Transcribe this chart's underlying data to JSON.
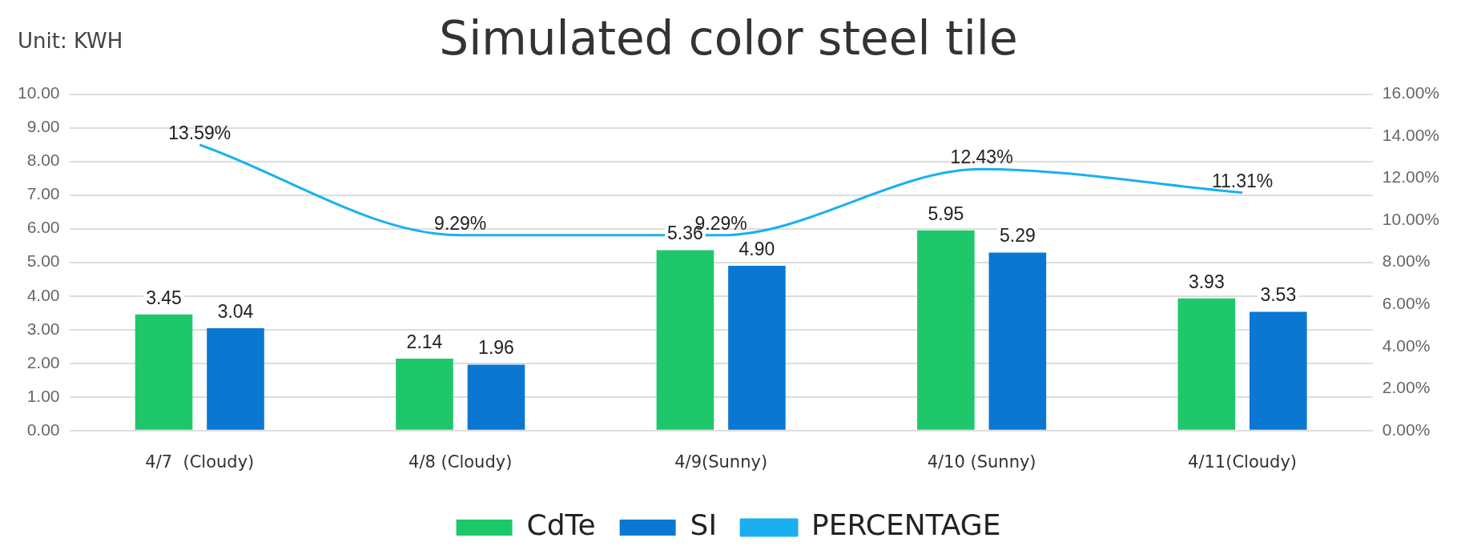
{
  "chart_data": {
    "type": "bar",
    "title": "Simulated color steel tile",
    "annotations": [
      "Unit: KWH"
    ],
    "categories": [
      "4/7  (Cloudy)",
      "4/8 (Cloudy)",
      "4/9(Sunny)",
      "4/10 (Sunny)",
      "4/11(Cloudy)"
    ],
    "series": [
      {
        "name": "CdTe",
        "color": "#1ec86a",
        "values": [
          3.45,
          2.14,
          5.36,
          5.95,
          3.93
        ],
        "value_labels": [
          "3.45",
          "2.14",
          "5.36",
          "5.95",
          "3.93"
        ]
      },
      {
        "name": "SI",
        "color": "#0a78d2",
        "values": [
          3.04,
          1.96,
          4.9,
          5.29,
          3.53
        ],
        "value_labels": [
          "3.04",
          "1.96",
          "4.90",
          "5.29",
          "3.53"
        ]
      },
      {
        "name": "PERCENTAGE",
        "type": "line",
        "axis": "y2",
        "color": "#1ab0f0",
        "marker": "none",
        "values": [
          13.59,
          9.29,
          9.29,
          12.43,
          11.31
        ],
        "value_labels": [
          "13.59%",
          "9.29%",
          "9.29%",
          "12.43%",
          "11.31%"
        ]
      }
    ],
    "ylim": [
      0,
      10
    ],
    "yticks": [
      {
        "value": 0,
        "label": "0.00"
      },
      {
        "value": 1,
        "label": "1.00"
      },
      {
        "value": 2,
        "label": "2.00"
      },
      {
        "value": 3,
        "label": "3.00"
      },
      {
        "value": 4,
        "label": "4.00"
      },
      {
        "value": 5,
        "label": "5.00"
      },
      {
        "value": 6,
        "label": "6.00"
      },
      {
        "value": 7,
        "label": "7.00"
      },
      {
        "value": 8,
        "label": "8.00"
      },
      {
        "value": 9,
        "label": "9.00"
      },
      {
        "value": 10,
        "label": "10.00"
      }
    ],
    "y2lim": [
      0,
      16
    ],
    "y2ticks": [
      {
        "value": 0,
        "label": "0.00%"
      },
      {
        "value": 2,
        "label": "2.00%"
      },
      {
        "value": 4,
        "label": "4.00%"
      },
      {
        "value": 6,
        "label": "6.00%"
      },
      {
        "value": 8,
        "label": "8.00%"
      },
      {
        "value": 10,
        "label": "10.00%"
      },
      {
        "value": 12,
        "label": "12.00%"
      },
      {
        "value": 14,
        "label": "14.00%"
      },
      {
        "value": 16,
        "label": "16.00%"
      }
    ],
    "grid": "y",
    "legend": "bottom"
  }
}
